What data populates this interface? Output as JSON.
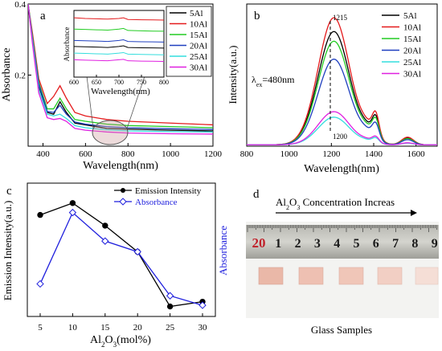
{
  "chart_data": [
    {
      "panel": "a",
      "type": "line",
      "xlabel": "Wavelength(nm)",
      "ylabel": "Absorbance",
      "xlim": [
        330,
        1200
      ],
      "ylim": [
        0,
        0.4
      ],
      "x_ticks": [
        "400",
        "600",
        "800",
        "1000",
        "1200"
      ],
      "y_ticks": [
        "0.2",
        "0.4"
      ],
      "series": [
        {
          "name": "5Al",
          "color": "#000000",
          "x": [
            330,
            350,
            380,
            420,
            450,
            480,
            510,
            550,
            600,
            700,
            800,
            1000,
            1200
          ],
          "y": [
            0.4,
            0.3,
            0.17,
            0.095,
            0.09,
            0.125,
            0.095,
            0.065,
            0.06,
            0.05,
            0.048,
            0.045,
            0.043
          ]
        },
        {
          "name": "10Al",
          "color": "#e41a1c",
          "x": [
            330,
            350,
            380,
            420,
            450,
            480,
            510,
            550,
            600,
            700,
            800,
            1000,
            1200
          ],
          "y": [
            0.4,
            0.32,
            0.19,
            0.12,
            0.14,
            0.17,
            0.135,
            0.095,
            0.085,
            0.075,
            0.07,
            0.065,
            0.06
          ]
        },
        {
          "name": "15Al",
          "color": "#22cc22",
          "x": [
            330,
            350,
            380,
            420,
            450,
            480,
            510,
            550,
            600,
            700,
            800,
            1000,
            1200
          ],
          "y": [
            0.4,
            0.31,
            0.18,
            0.105,
            0.105,
            0.135,
            0.105,
            0.075,
            0.07,
            0.062,
            0.058,
            0.055,
            0.052
          ]
        },
        {
          "name": "20Al",
          "color": "#1f3fbf",
          "x": [
            330,
            350,
            380,
            420,
            450,
            480,
            510,
            550,
            600,
            700,
            800,
            1000,
            1200
          ],
          "y": [
            0.4,
            0.305,
            0.175,
            0.098,
            0.095,
            0.115,
            0.09,
            0.068,
            0.062,
            0.055,
            0.052,
            0.049,
            0.047
          ]
        },
        {
          "name": "25Al",
          "color": "#33dddd",
          "x": [
            330,
            350,
            380,
            420,
            450,
            480,
            510,
            550,
            600,
            700,
            800,
            1000,
            1200
          ],
          "y": [
            0.4,
            0.3,
            0.16,
            0.09,
            0.085,
            0.09,
            0.078,
            0.058,
            0.052,
            0.046,
            0.043,
            0.041,
            0.04
          ]
        },
        {
          "name": "30Al",
          "color": "#e020e0",
          "x": [
            330,
            350,
            380,
            420,
            450,
            480,
            510,
            550,
            600,
            700,
            800,
            1000,
            1200
          ],
          "y": [
            0.4,
            0.29,
            0.15,
            0.08,
            0.075,
            0.078,
            0.07,
            0.05,
            0.045,
            0.04,
            0.037,
            0.035,
            0.034
          ]
        }
      ],
      "inset": {
        "xlabel": "Wavelength(nm)",
        "ylabel": "Absorbance",
        "xlim": [
          600,
          800
        ],
        "x_ticks": [
          "600",
          "650",
          "700",
          "750",
          "800"
        ],
        "series": [
          {
            "name": "10Al",
            "x": [
              600,
              625,
              650,
              675,
              700,
              710,
              720,
              750,
              775,
              800
            ],
            "y": [
              0.89,
              0.88,
              0.875,
              0.87,
              0.88,
              0.89,
              0.865,
              0.86,
              0.858,
              0.855
            ]
          },
          {
            "name": "15Al",
            "x": [
              600,
              625,
              650,
              675,
              700,
              710,
              720,
              750,
              775,
              800
            ],
            "y": [
              0.72,
              0.715,
              0.71,
              0.705,
              0.72,
              0.73,
              0.7,
              0.695,
              0.69,
              0.688
            ]
          },
          {
            "name": "20Al",
            "x": [
              600,
              625,
              650,
              675,
              700,
              710,
              720,
              750,
              775,
              800
            ],
            "y": [
              0.55,
              0.545,
              0.54,
              0.535,
              0.55,
              0.56,
              0.535,
              0.53,
              0.528,
              0.525
            ]
          },
          {
            "name": "5Al",
            "x": [
              600,
              625,
              650,
              675,
              700,
              710,
              720,
              750,
              775,
              800
            ],
            "y": [
              0.46,
              0.455,
              0.45,
              0.445,
              0.46,
              0.47,
              0.445,
              0.44,
              0.438,
              0.435
            ]
          },
          {
            "name": "25Al",
            "x": [
              600,
              625,
              650,
              675,
              700,
              710,
              720,
              750,
              775,
              800
            ],
            "y": [
              0.36,
              0.355,
              0.35,
              0.345,
              0.36,
              0.368,
              0.345,
              0.34,
              0.338,
              0.335
            ]
          },
          {
            "name": "30Al",
            "x": [
              600,
              625,
              650,
              675,
              700,
              710,
              720,
              750,
              775,
              800
            ],
            "y": [
              0.26,
              0.255,
              0.25,
              0.245,
              0.26,
              0.266,
              0.245,
              0.24,
              0.238,
              0.235
            ]
          }
        ]
      }
    },
    {
      "panel": "b",
      "type": "line",
      "xlabel": "Wavelength(nm)",
      "ylabel": "Intensity(a.u.)",
      "xlim": [
        800,
        1700
      ],
      "x_ticks": [
        "800",
        "1000",
        "1200",
        "1400",
        "1600"
      ],
      "annotations": {
        "excitation_prefix": "λ",
        "excitation_sub": "ex",
        "excitation_value": "=480nm",
        "peak_top": "1215",
        "peak_bottom": "1200"
      },
      "series": [
        {
          "name": "5Al",
          "peak": 0.82
        },
        {
          "name": "10Al",
          "peak": 0.92
        },
        {
          "name": "15Al",
          "peak": 0.75
        },
        {
          "name": "20Al",
          "peak": 0.62
        },
        {
          "name": "25Al",
          "peak": 0.2
        },
        {
          "name": "30Al",
          "peak": 0.24
        }
      ]
    },
    {
      "panel": "c",
      "type": "line",
      "xlabel_main": "Al",
      "xlabel_sub1": "2",
      "xlabel_mid": "O",
      "xlabel_sub2": "3",
      "xlabel_tail": "(mol%)",
      "ylabel": "Emission Intensity(a.u.)",
      "ylabel_right": "Absorbance",
      "x": [
        5,
        10,
        15,
        20,
        25,
        30
      ],
      "x_ticks": [
        "5",
        "10",
        "15",
        "20",
        "25",
        "30"
      ],
      "series": [
        {
          "name": "Emission Intensity",
          "color": "#000000",
          "values": [
            0.8,
            0.9,
            0.71,
            0.49,
            0.03,
            0.07
          ]
        },
        {
          "name": "Absorbance",
          "color": "#1f1fdd",
          "values": [
            0.22,
            0.82,
            0.58,
            0.49,
            0.12,
            0.04
          ]
        }
      ]
    }
  ],
  "panel_d": {
    "label": "d",
    "arrow_text_main": "Al",
    "arrow_sub1": "2",
    "arrow_mid": "O",
    "arrow_sub2": "3",
    "arrow_tail": " Concentration Increas",
    "ruler_numbers": [
      "20",
      "1",
      "2",
      "3",
      "4",
      "5",
      "6",
      "7",
      "8",
      "9"
    ],
    "caption": "Glass Samples"
  }
}
